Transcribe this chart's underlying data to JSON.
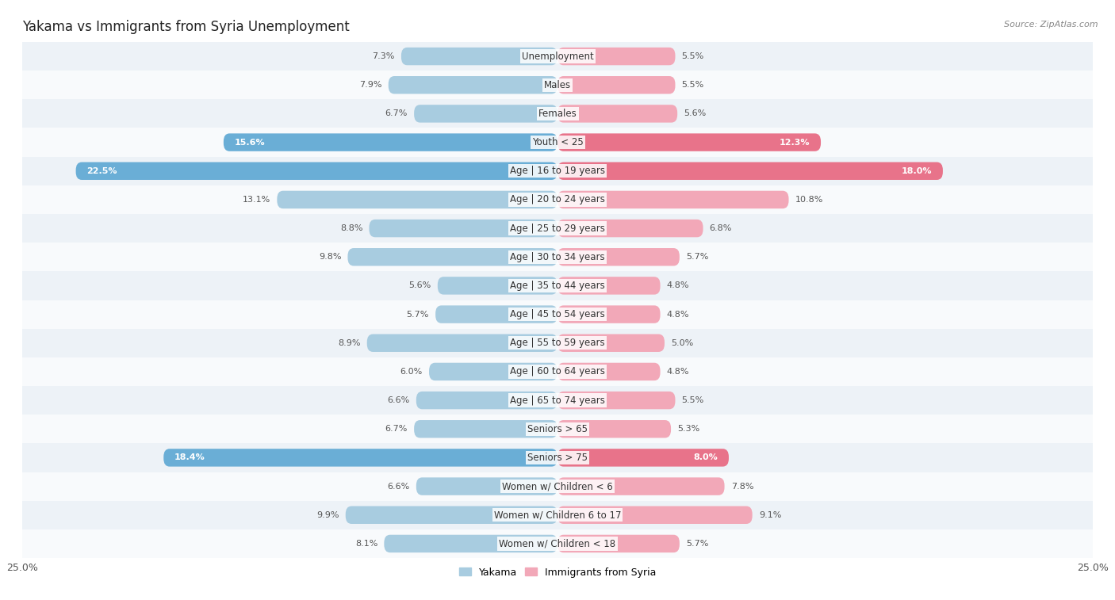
{
  "title": "Yakama vs Immigrants from Syria Unemployment",
  "source": "Source: ZipAtlas.com",
  "categories": [
    "Unemployment",
    "Males",
    "Females",
    "Youth < 25",
    "Age | 16 to 19 years",
    "Age | 20 to 24 years",
    "Age | 25 to 29 years",
    "Age | 30 to 34 years",
    "Age | 35 to 44 years",
    "Age | 45 to 54 years",
    "Age | 55 to 59 years",
    "Age | 60 to 64 years",
    "Age | 65 to 74 years",
    "Seniors > 65",
    "Seniors > 75",
    "Women w/ Children < 6",
    "Women w/ Children 6 to 17",
    "Women w/ Children < 18"
  ],
  "yakama_values": [
    7.3,
    7.9,
    6.7,
    15.6,
    22.5,
    13.1,
    8.8,
    9.8,
    5.6,
    5.7,
    8.9,
    6.0,
    6.6,
    6.7,
    18.4,
    6.6,
    9.9,
    8.1
  ],
  "syria_values": [
    5.5,
    5.5,
    5.6,
    12.3,
    18.0,
    10.8,
    6.8,
    5.7,
    4.8,
    4.8,
    5.0,
    4.8,
    5.5,
    5.3,
    8.0,
    7.8,
    9.1,
    5.7
  ],
  "yakama_color": "#a8cce0",
  "syria_color": "#f2a8b8",
  "yakama_highlight_color": "#6aaed6",
  "syria_highlight_color": "#e8738a",
  "highlight_rows": [
    3,
    4,
    14
  ],
  "axis_limit": 25.0,
  "bg_color_odd": "#edf2f7",
  "bg_color_even": "#f8fafc",
  "bar_height": 0.62,
  "title_fontsize": 12,
  "label_fontsize": 8.5,
  "value_fontsize": 8
}
